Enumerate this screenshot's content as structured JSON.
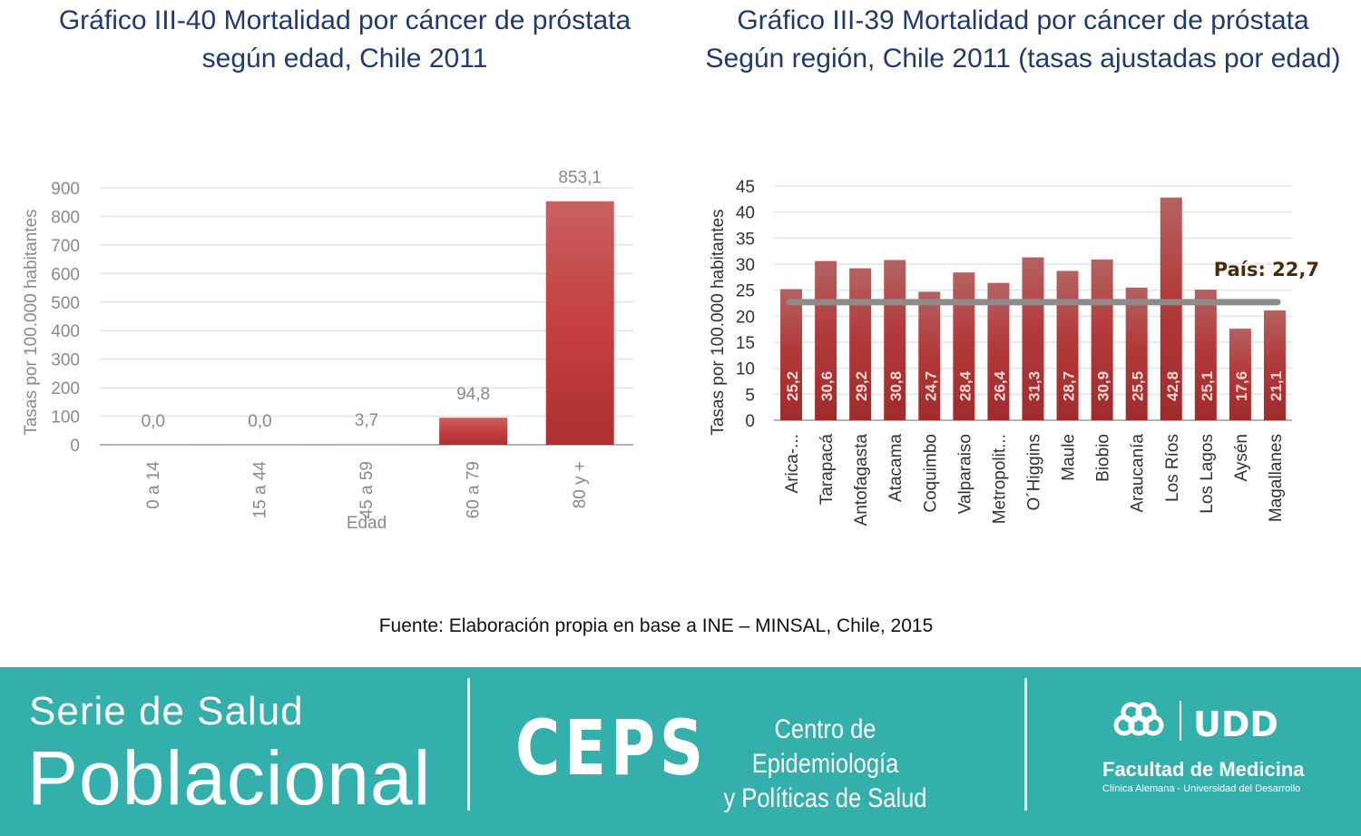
{
  "charts": {
    "left_title_line1": "Gráfico III-40 Mortalidad por cáncer de próstata",
    "left_title_line2": "según edad, Chile 2011",
    "right_title_line1": "Gráfico III-39 Mortalidad por cáncer de próstata",
    "right_title_line2": "Según región, Chile 2011 (tasas ajustadas por edad)"
  },
  "chart_data": [
    {
      "type": "bar",
      "title": "Gráfico III-40 Mortalidad por cáncer de próstata según edad, Chile 2011",
      "xlabel": "Edad",
      "ylabel": "Tasas por 100.000 habitantes",
      "categories": [
        "0 a 14",
        "15 a 44",
        "45 a 59",
        "60 a 79",
        "80 y +"
      ],
      "values": [
        0.0,
        0.0,
        3.7,
        94.8,
        853.1
      ],
      "data_labels": [
        "0,0",
        "0,0",
        "3,7",
        "94,8",
        "853,1"
      ],
      "ylim": [
        0,
        900
      ],
      "yticks": [
        0,
        100,
        200,
        300,
        400,
        500,
        600,
        700,
        800,
        900
      ],
      "grid": true,
      "bar_color": "#c0393b"
    },
    {
      "type": "bar",
      "title": "Gráfico III-39 Mortalidad por cáncer de próstata Según región, Chile 2011 (tasas ajustadas por edad)",
      "xlabel": "",
      "ylabel": "Tasas por 100.000 habitantes",
      "categories": [
        "Arica-...",
        "Tarapacá",
        "Antofagasta",
        "Atacama",
        "Coquimbo",
        "Valparaiso",
        "Metropolit...",
        "O´Higgins",
        "Maule",
        "Biobio",
        "Araucanía",
        "Los Ríos",
        "Los Lagos",
        "Aysén",
        "Magallanes"
      ],
      "values": [
        25.2,
        30.6,
        29.2,
        30.8,
        24.7,
        28.4,
        26.4,
        31.3,
        28.7,
        30.9,
        25.5,
        42.8,
        25.1,
        17.6,
        21.1
      ],
      "data_labels": [
        "25,2",
        "30,6",
        "29,2",
        "30,8",
        "24,7",
        "28,4",
        "26,4",
        "31,3",
        "28,7",
        "30,9",
        "25,5",
        "42,8",
        "25,1",
        "17,6",
        "21,1"
      ],
      "ylim": [
        0,
        45
      ],
      "yticks": [
        0,
        5,
        10,
        15,
        20,
        25,
        30,
        35,
        40,
        45
      ],
      "grid": true,
      "bar_color": "#b23535",
      "reference_line": {
        "value": 22.7,
        "label": "País: 22,7",
        "color": "#8c8c8c"
      }
    }
  ],
  "source": "Fuente: Elaboración propia en base a INE – MINSAL, Chile, 2015",
  "footer": {
    "serie_line1": "Serie de Salud",
    "serie_line2": "Poblacional",
    "ceps": "CEPS",
    "ceps_sub_line1": "Centro de Epidemiología",
    "ceps_sub_line2": "y Políticas de Salud",
    "udd_logo": "UDD",
    "faculty": "Facultad de Medicina",
    "faculty_sub": "Clínica Alemana - Universidad del Desarrollo",
    "background_color": "#34b0ac"
  }
}
